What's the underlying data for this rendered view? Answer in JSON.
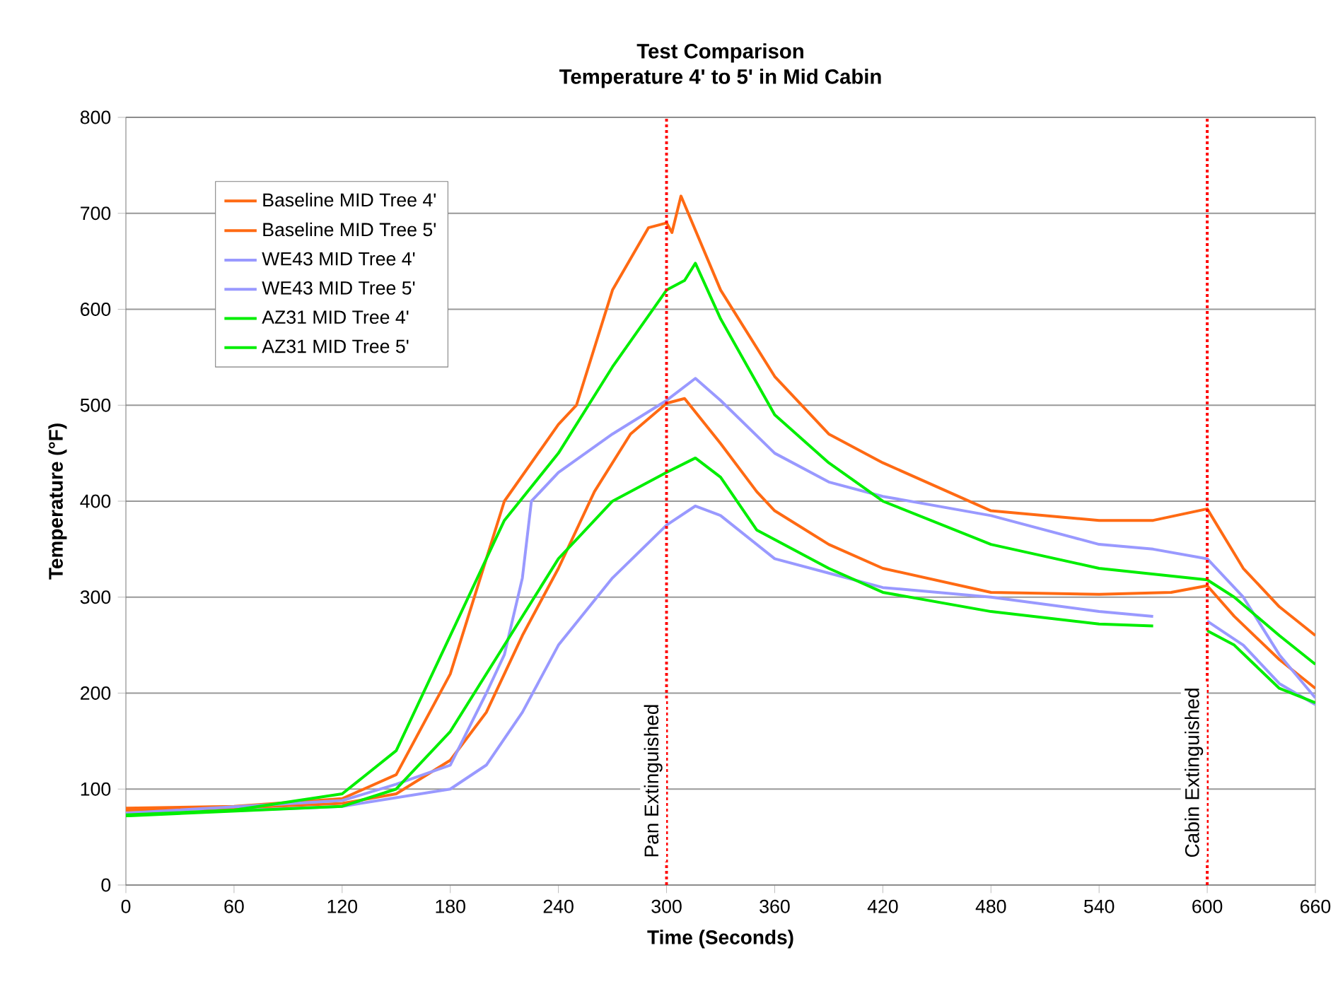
{
  "chart_data": {
    "type": "line",
    "title": "Test Comparison",
    "subtitle": "Temperature 4' to 5' in Mid Cabin",
    "xlabel": "Time (Seconds)",
    "ylabel": "Temperature (°F)",
    "xlim": [
      0,
      660
    ],
    "xticks": [
      0,
      60,
      120,
      180,
      240,
      300,
      360,
      420,
      480,
      540,
      600,
      660
    ],
    "ylim": [
      0,
      800
    ],
    "yticks": [
      0,
      100,
      200,
      300,
      400,
      500,
      600,
      700,
      800
    ],
    "grid": "y",
    "legend": "top left",
    "series": [
      {
        "name": "Baseline MID Tree 4'",
        "color": "#ff6a13",
        "x": [
          0,
          60,
          120,
          150,
          180,
          200,
          220,
          240,
          260,
          280,
          300,
          310,
          330,
          350,
          360,
          390,
          420,
          480,
          540,
          580,
          600,
          615,
          640,
          660
        ],
        "values": [
          78,
          80,
          85,
          95,
          130,
          180,
          260,
          330,
          410,
          470,
          502,
          507,
          460,
          410,
          390,
          355,
          330,
          305,
          303,
          305,
          312,
          280,
          235,
          205
        ]
      },
      {
        "name": "Baseline MID Tree 5'",
        "color": "#ff6a13",
        "x": [
          0,
          60,
          120,
          150,
          180,
          195,
          210,
          240,
          250,
          270,
          290,
          300,
          303,
          308,
          330,
          360,
          390,
          420,
          480,
          540,
          570,
          600,
          620,
          640,
          660
        ],
        "values": [
          80,
          82,
          90,
          115,
          220,
          310,
          400,
          480,
          500,
          620,
          685,
          690,
          680,
          718,
          620,
          530,
          470,
          440,
          390,
          380,
          380,
          392,
          330,
          290,
          260
        ]
      },
      {
        "name": "WE43 MID Tree 4'",
        "color": "#9999ff",
        "x": [
          0,
          120,
          180,
          200,
          220,
          240,
          270,
          300,
          316,
          330,
          360,
          390,
          420,
          480,
          540,
          570,
          580,
          600,
          620,
          640,
          660
        ],
        "values": [
          73,
          82,
          100,
          125,
          180,
          250,
          320,
          375,
          395,
          385,
          340,
          325,
          310,
          300,
          285,
          280,
          null,
          275,
          250,
          210,
          188
        ]
      },
      {
        "name": "WE43 MID Tree 5'",
        "color": "#9999ff",
        "x": [
          0,
          120,
          150,
          180,
          200,
          210,
          220,
          225,
          240,
          270,
          300,
          316,
          330,
          360,
          390,
          420,
          480,
          540,
          570,
          600,
          620,
          640,
          660
        ],
        "values": [
          75,
          88,
          105,
          125,
          200,
          240,
          320,
          400,
          430,
          470,
          505,
          528,
          505,
          450,
          420,
          405,
          385,
          355,
          350,
          340,
          300,
          240,
          195
        ]
      },
      {
        "name": "AZ31 MID Tree 4'",
        "color": "#00ee00",
        "x": [
          0,
          120,
          150,
          180,
          210,
          240,
          270,
          300,
          316,
          330,
          350,
          390,
          420,
          480,
          540,
          570,
          580,
          600,
          615,
          640,
          660
        ],
        "values": [
          72,
          82,
          100,
          160,
          250,
          340,
          400,
          430,
          445,
          425,
          370,
          330,
          305,
          285,
          272,
          270,
          null,
          265,
          250,
          205,
          190
        ]
      },
      {
        "name": "AZ31 MID Tree 5'",
        "color": "#00ee00",
        "x": [
          0,
          60,
          120,
          150,
          180,
          195,
          210,
          240,
          270,
          300,
          310,
          316,
          330,
          360,
          390,
          420,
          480,
          540,
          600,
          615,
          640,
          660
        ],
        "values": [
          73,
          78,
          95,
          140,
          260,
          320,
          380,
          450,
          540,
          620,
          630,
          648,
          590,
          490,
          440,
          400,
          355,
          330,
          318,
          300,
          260,
          230
        ]
      }
    ],
    "ref_lines": [
      {
        "axis": "x",
        "value": 300,
        "label": "Pan  Extinguished",
        "color": "#ff0000",
        "line_style": "dotted"
      },
      {
        "axis": "x",
        "value": 600,
        "label": "Cabin  Extinguished",
        "color": "#ff0000",
        "line_style": "dotted"
      }
    ]
  }
}
